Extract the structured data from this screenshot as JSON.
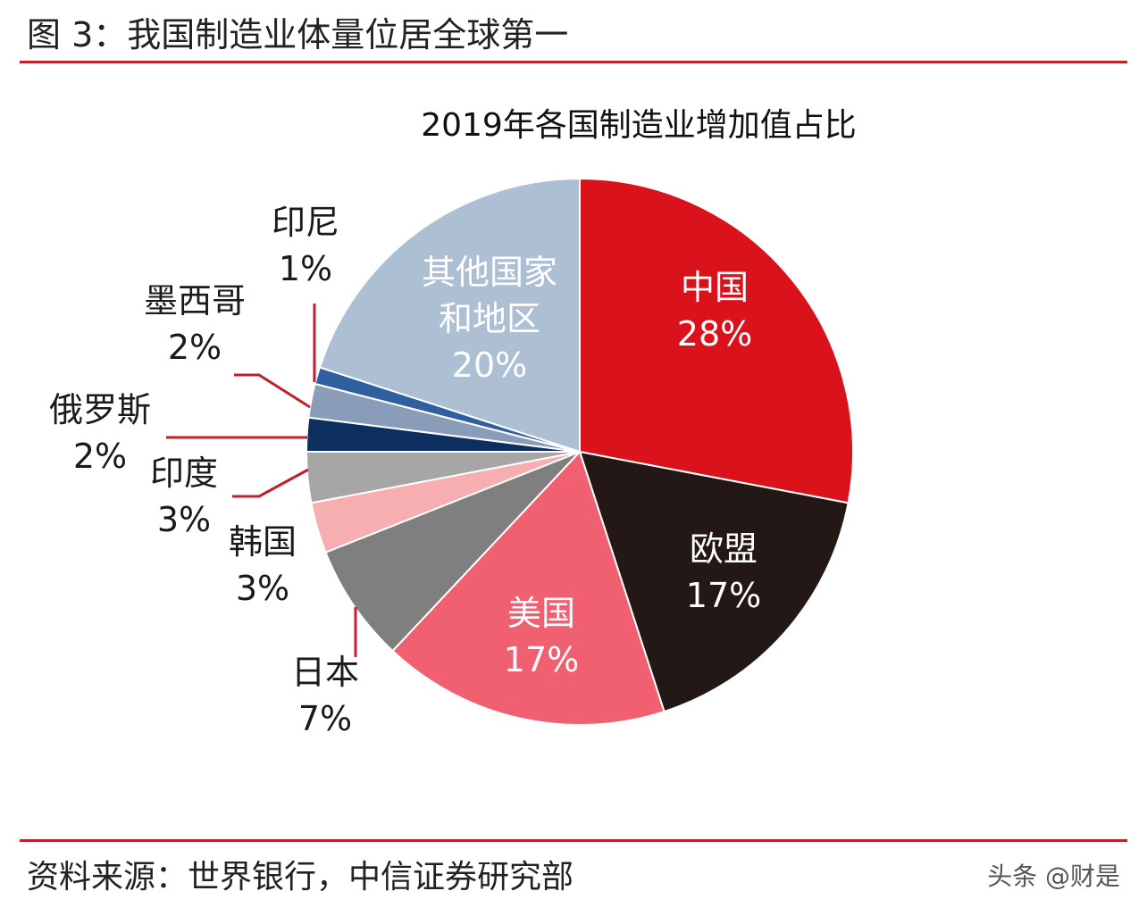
{
  "figure_title": "图 3：我国制造业体量位居全球第一",
  "source_text": "资料来源：世界银行，中信证券研究部",
  "watermark": "头条 @财是",
  "chart_data": {
    "type": "pie",
    "title": "2019年各国制造业增加值占比",
    "slices": [
      {
        "name": "中国",
        "value": 28,
        "label": "28%",
        "color": "#d9121b"
      },
      {
        "name": "欧盟",
        "value": 17,
        "label": "17%",
        "color": "#231815"
      },
      {
        "name": "美国",
        "value": 17,
        "label": "17%",
        "color": "#f06070"
      },
      {
        "name": "日本",
        "value": 7,
        "label": "7%",
        "color": "#7f7f7f"
      },
      {
        "name": "韩国",
        "value": 3,
        "label": "3%",
        "color": "#f7aeb0"
      },
      {
        "name": "印度",
        "value": 3,
        "label": "3%",
        "color": "#a6a6a6"
      },
      {
        "name": "俄罗斯",
        "value": 2,
        "label": "2%",
        "color": "#0d2f5f"
      },
      {
        "name": "墨西哥",
        "value": 2,
        "label": "2%",
        "color": "#8a9db8"
      },
      {
        "name": "印尼",
        "value": 1,
        "label": "1%",
        "color": "#2f5f9f"
      },
      {
        "name": "其他国家\n和地区",
        "value": 20,
        "label": "20%",
        "color": "#adbfd3"
      }
    ]
  }
}
